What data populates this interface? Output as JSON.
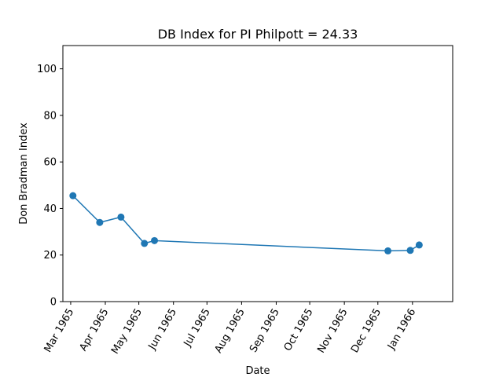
{
  "chart_data": {
    "type": "line",
    "title": "DB Index for PI Philpott = 24.33",
    "xlabel": "Date",
    "ylabel": "Don Bradman Index",
    "ylim": [
      0,
      110
    ],
    "xlim": [
      "1965-02-22",
      "1966-02-06"
    ],
    "yticks": [
      0,
      20,
      40,
      60,
      80,
      100
    ],
    "xticks": [
      {
        "date": "1965-03-01",
        "label": "Mar 1965"
      },
      {
        "date": "1965-04-01",
        "label": "Apr 1965"
      },
      {
        "date": "1965-05-01",
        "label": "May 1965"
      },
      {
        "date": "1965-06-01",
        "label": "Jun 1965"
      },
      {
        "date": "1965-07-01",
        "label": "Jul 1965"
      },
      {
        "date": "1965-08-01",
        "label": "Aug 1965"
      },
      {
        "date": "1965-09-01",
        "label": "Sep 1965"
      },
      {
        "date": "1965-10-01",
        "label": "Oct 1965"
      },
      {
        "date": "1965-11-01",
        "label": "Nov 1965"
      },
      {
        "date": "1965-12-01",
        "label": "Dec 1965"
      },
      {
        "date": "1966-01-01",
        "label": "Jan 1966"
      }
    ],
    "grid": false,
    "series": [
      {
        "color": "#1f77b4",
        "points": [
          {
            "x": "1965-03-03",
            "y": 45.5
          },
          {
            "x": "1965-03-27",
            "y": 34.0
          },
          {
            "x": "1965-04-15",
            "y": 36.3
          },
          {
            "x": "1965-05-06",
            "y": 25.0
          },
          {
            "x": "1965-05-15",
            "y": 26.2
          },
          {
            "x": "1965-12-10",
            "y": 21.8
          },
          {
            "x": "1965-12-30",
            "y": 22.0
          },
          {
            "x": "1966-01-07",
            "y": 24.33
          }
        ]
      }
    ]
  }
}
